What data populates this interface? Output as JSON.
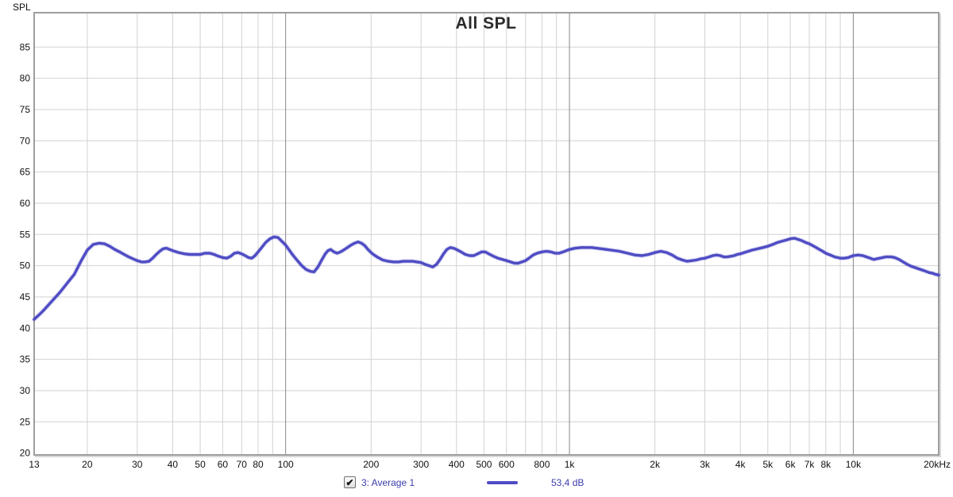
{
  "window": {
    "background": "#ffffff"
  },
  "legend": {
    "checkbox_checked": true,
    "series_label": "3: Average 1",
    "value_label": "53,4 dB",
    "text_color": "#3c3caa"
  },
  "chart_data": {
    "type": "line",
    "title": "All SPL",
    "y_axis": {
      "corner_label": "SPL",
      "min": 19.7,
      "max": 90.5,
      "ticks": [
        20,
        25,
        30,
        35,
        40,
        45,
        50,
        55,
        60,
        65,
        70,
        75,
        80,
        85
      ]
    },
    "x_axis": {
      "scale": "log",
      "min": 13,
      "max": 20000,
      "tick_labels": [
        {
          "f": 13,
          "label": "13"
        },
        {
          "f": 20,
          "label": "20"
        },
        {
          "f": 30,
          "label": "30"
        },
        {
          "f": 40,
          "label": "40"
        },
        {
          "f": 50,
          "label": "50"
        },
        {
          "f": 60,
          "label": "60"
        },
        {
          "f": 70,
          "label": "70"
        },
        {
          "f": 80,
          "label": "80"
        },
        {
          "f": 100,
          "label": "100"
        },
        {
          "f": 200,
          "label": "200"
        },
        {
          "f": 300,
          "label": "300"
        },
        {
          "f": 400,
          "label": "400"
        },
        {
          "f": 500,
          "label": "500"
        },
        {
          "f": 600,
          "label": "600"
        },
        {
          "f": 800,
          "label": "800"
        },
        {
          "f": 1000,
          "label": "1k"
        },
        {
          "f": 2000,
          "label": "2k"
        },
        {
          "f": 3000,
          "label": "3k"
        },
        {
          "f": 4000,
          "label": "4k"
        },
        {
          "f": 5000,
          "label": "5k"
        },
        {
          "f": 6000,
          "label": "6k"
        },
        {
          "f": 7000,
          "label": "7k"
        },
        {
          "f": 8000,
          "label": "8k"
        },
        {
          "f": 10000,
          "label": "10k"
        },
        {
          "f": 20000,
          "label": "20kHz"
        }
      ],
      "minor_gridlines": [
        20,
        30,
        40,
        50,
        60,
        70,
        80,
        90,
        200,
        300,
        400,
        500,
        600,
        700,
        800,
        900,
        2000,
        3000,
        4000,
        5000,
        6000,
        7000,
        8000,
        9000
      ],
      "decade_gridlines": [
        100,
        1000,
        10000
      ]
    },
    "grid": {
      "minor_color": "#d2d2d2",
      "decade_color": "#878787",
      "border_color": "#9e9e9e",
      "border_highlight": "#d9d9d9",
      "tick_text_color": "#111111"
    },
    "series": [
      {
        "name": "3: Average 1",
        "value_label": "53,4 dB",
        "color": "#4f4cc4",
        "enabled": true,
        "points": [
          [
            13,
            41.4
          ],
          [
            13.5,
            42.1
          ],
          [
            14,
            42.8
          ],
          [
            15,
            44.3
          ],
          [
            16,
            45.7
          ],
          [
            17,
            47.2
          ],
          [
            18,
            48.6
          ],
          [
            19,
            50.7
          ],
          [
            20,
            52.5
          ],
          [
            21,
            53.4
          ],
          [
            22,
            53.6
          ],
          [
            23,
            53.5
          ],
          [
            24,
            53.1
          ],
          [
            25,
            52.6
          ],
          [
            26,
            52.2
          ],
          [
            27,
            51.8
          ],
          [
            28,
            51.4
          ],
          [
            29,
            51.1
          ],
          [
            30,
            50.8
          ],
          [
            31,
            50.6
          ],
          [
            32,
            50.6
          ],
          [
            33,
            50.7
          ],
          [
            34,
            51.2
          ],
          [
            35,
            51.8
          ],
          [
            36,
            52.3
          ],
          [
            37,
            52.7
          ],
          [
            38,
            52.8
          ],
          [
            39,
            52.6
          ],
          [
            40,
            52.4
          ],
          [
            42,
            52.1
          ],
          [
            44,
            51.9
          ],
          [
            46,
            51.8
          ],
          [
            48,
            51.8
          ],
          [
            50,
            51.8
          ],
          [
            52,
            52.0
          ],
          [
            54,
            52.0
          ],
          [
            56,
            51.8
          ],
          [
            58,
            51.5
          ],
          [
            60,
            51.3
          ],
          [
            62,
            51.2
          ],
          [
            64,
            51.5
          ],
          [
            66,
            52.0
          ],
          [
            68,
            52.1
          ],
          [
            70,
            51.9
          ],
          [
            72,
            51.6
          ],
          [
            74,
            51.3
          ],
          [
            76,
            51.2
          ],
          [
            78,
            51.6
          ],
          [
            80,
            52.2
          ],
          [
            82,
            52.8
          ],
          [
            85,
            53.7
          ],
          [
            88,
            54.3
          ],
          [
            91,
            54.6
          ],
          [
            94,
            54.5
          ],
          [
            97,
            53.9
          ],
          [
            100,
            53.3
          ],
          [
            103,
            52.5
          ],
          [
            106,
            51.7
          ],
          [
            110,
            50.8
          ],
          [
            114,
            50.0
          ],
          [
            118,
            49.4
          ],
          [
            122,
            49.1
          ],
          [
            126,
            49.0
          ],
          [
            130,
            49.8
          ],
          [
            134,
            50.9
          ],
          [
            138,
            51.9
          ],
          [
            141,
            52.4
          ],
          [
            144,
            52.6
          ],
          [
            148,
            52.2
          ],
          [
            152,
            52.0
          ],
          [
            156,
            52.2
          ],
          [
            160,
            52.5
          ],
          [
            165,
            52.9
          ],
          [
            170,
            53.3
          ],
          [
            175,
            53.6
          ],
          [
            180,
            53.8
          ],
          [
            185,
            53.6
          ],
          [
            190,
            53.2
          ],
          [
            195,
            52.6
          ],
          [
            200,
            52.1
          ],
          [
            205,
            51.7
          ],
          [
            210,
            51.4
          ],
          [
            220,
            50.9
          ],
          [
            230,
            50.7
          ],
          [
            240,
            50.6
          ],
          [
            250,
            50.6
          ],
          [
            260,
            50.7
          ],
          [
            270,
            50.7
          ],
          [
            280,
            50.7
          ],
          [
            290,
            50.6
          ],
          [
            300,
            50.5
          ],
          [
            310,
            50.2
          ],
          [
            320,
            50.0
          ],
          [
            330,
            49.8
          ],
          [
            340,
            50.2
          ],
          [
            350,
            51.0
          ],
          [
            360,
            51.9
          ],
          [
            370,
            52.6
          ],
          [
            380,
            52.9
          ],
          [
            390,
            52.8
          ],
          [
            400,
            52.6
          ],
          [
            415,
            52.2
          ],
          [
            430,
            51.8
          ],
          [
            445,
            51.6
          ],
          [
            460,
            51.6
          ],
          [
            475,
            51.9
          ],
          [
            490,
            52.2
          ],
          [
            505,
            52.2
          ],
          [
            520,
            51.9
          ],
          [
            540,
            51.5
          ],
          [
            560,
            51.2
          ],
          [
            580,
            51.0
          ],
          [
            600,
            50.8
          ],
          [
            620,
            50.6
          ],
          [
            640,
            50.4
          ],
          [
            660,
            50.4
          ],
          [
            680,
            50.6
          ],
          [
            700,
            50.8
          ],
          [
            720,
            51.2
          ],
          [
            745,
            51.7
          ],
          [
            770,
            52.0
          ],
          [
            800,
            52.2
          ],
          [
            830,
            52.3
          ],
          [
            860,
            52.2
          ],
          [
            890,
            52.0
          ],
          [
            920,
            52.0
          ],
          [
            950,
            52.2
          ],
          [
            1000,
            52.6
          ],
          [
            1050,
            52.8
          ],
          [
            1100,
            52.9
          ],
          [
            1150,
            52.9
          ],
          [
            1200,
            52.9
          ],
          [
            1300,
            52.7
          ],
          [
            1400,
            52.5
          ],
          [
            1500,
            52.3
          ],
          [
            1600,
            52.0
          ],
          [
            1700,
            51.7
          ],
          [
            1800,
            51.6
          ],
          [
            1900,
            51.8
          ],
          [
            2000,
            52.1
          ],
          [
            2100,
            52.3
          ],
          [
            2200,
            52.1
          ],
          [
            2300,
            51.7
          ],
          [
            2400,
            51.2
          ],
          [
            2500,
            50.9
          ],
          [
            2600,
            50.7
          ],
          [
            2700,
            50.8
          ],
          [
            2800,
            50.9
          ],
          [
            2900,
            51.1
          ],
          [
            3000,
            51.2
          ],
          [
            3100,
            51.4
          ],
          [
            3200,
            51.6
          ],
          [
            3300,
            51.7
          ],
          [
            3400,
            51.6
          ],
          [
            3500,
            51.4
          ],
          [
            3600,
            51.4
          ],
          [
            3700,
            51.5
          ],
          [
            3800,
            51.6
          ],
          [
            3900,
            51.8
          ],
          [
            4000,
            51.9
          ],
          [
            4200,
            52.2
          ],
          [
            4400,
            52.5
          ],
          [
            4600,
            52.7
          ],
          [
            4800,
            52.9
          ],
          [
            5000,
            53.1
          ],
          [
            5200,
            53.4
          ],
          [
            5400,
            53.7
          ],
          [
            5600,
            53.9
          ],
          [
            5800,
            54.1
          ],
          [
            6000,
            54.3
          ],
          [
            6200,
            54.4
          ],
          [
            6400,
            54.2
          ],
          [
            6600,
            54.0
          ],
          [
            6800,
            53.7
          ],
          [
            7000,
            53.5
          ],
          [
            7200,
            53.2
          ],
          [
            7400,
            52.9
          ],
          [
            7600,
            52.6
          ],
          [
            7800,
            52.3
          ],
          [
            8000,
            52.0
          ],
          [
            8200,
            51.8
          ],
          [
            8400,
            51.6
          ],
          [
            8600,
            51.4
          ],
          [
            8800,
            51.3
          ],
          [
            9000,
            51.2
          ],
          [
            9300,
            51.2
          ],
          [
            9600,
            51.3
          ],
          [
            10000,
            51.6
          ],
          [
            10400,
            51.7
          ],
          [
            10800,
            51.6
          ],
          [
            11300,
            51.3
          ],
          [
            11800,
            51.0
          ],
          [
            12400,
            51.2
          ],
          [
            13000,
            51.4
          ],
          [
            13600,
            51.4
          ],
          [
            14000,
            51.3
          ],
          [
            14500,
            51.0
          ],
          [
            15000,
            50.6
          ],
          [
            15500,
            50.2
          ],
          [
            16000,
            49.9
          ],
          [
            16500,
            49.7
          ],
          [
            17000,
            49.5
          ],
          [
            17500,
            49.3
          ],
          [
            18000,
            49.1
          ],
          [
            18500,
            48.9
          ],
          [
            19000,
            48.8
          ],
          [
            19500,
            48.6
          ],
          [
            20000,
            48.5
          ]
        ]
      }
    ]
  }
}
